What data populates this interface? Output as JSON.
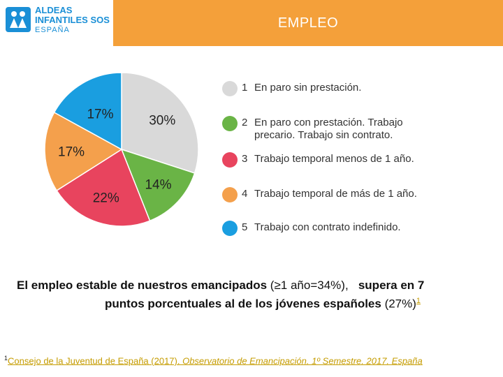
{
  "header": {
    "title": "EMPLEO",
    "logo": {
      "line1": "ALDEAS",
      "line2": "INFANTILES SOS",
      "line3": "ESPAÑA"
    }
  },
  "chart_data": {
    "type": "pie",
    "slices": [
      {
        "id": 1,
        "label": "En paro sin prestación.",
        "value": 30,
        "display": "30%",
        "color": "#d9d9d9"
      },
      {
        "id": 2,
        "label": "En paro con prestación. Trabajo precario. Trabajo sin contrato.",
        "value": 14,
        "display": "14%",
        "color": "#6ab446"
      },
      {
        "id": 3,
        "label": "Trabajo temporal menos de 1 año.",
        "value": 22,
        "display": "22%",
        "color": "#e8445e"
      },
      {
        "id": 4,
        "label": "Trabajo temporal de más de 1 año.",
        "value": 17,
        "display": "17%",
        "color": "#f4a04c"
      },
      {
        "id": 5,
        "label": "Trabajo con contrato indefinido.",
        "value": 17,
        "display": "17%",
        "color": "#1a9ee0"
      }
    ]
  },
  "legend": [
    {
      "num": "1",
      "label": "En paro sin prestación.",
      "color": "#d9d9d9"
    },
    {
      "num": "2",
      "label": "En paro con prestación. Trabajo precario. Trabajo sin contrato.",
      "color": "#6ab446"
    },
    {
      "num": "3",
      "label": "Trabajo temporal menos de 1 año.",
      "color": "#e8445e"
    },
    {
      "num": "4",
      "label": "Trabajo temporal de más de 1 año.",
      "color": "#f4a04c"
    },
    {
      "num": "5",
      "label": "Trabajo con contrato indefinido.",
      "color": "#1a9ee0"
    }
  ],
  "statement": {
    "part1": "El empleo estable de nuestros emancipados ",
    "part2": "(≥1 año=34%),",
    "part3": "   supera en 7",
    "part4": "puntos porcentuales al de los jóvenes españoles ",
    "part5": "(27%)",
    "ref": "1"
  },
  "footnote": {
    "sup": "1",
    "source": "Consejo de la Juventud de España (2017).",
    "title": " Observatorio de Emancipación. 1º Semestre. 2017. España"
  }
}
